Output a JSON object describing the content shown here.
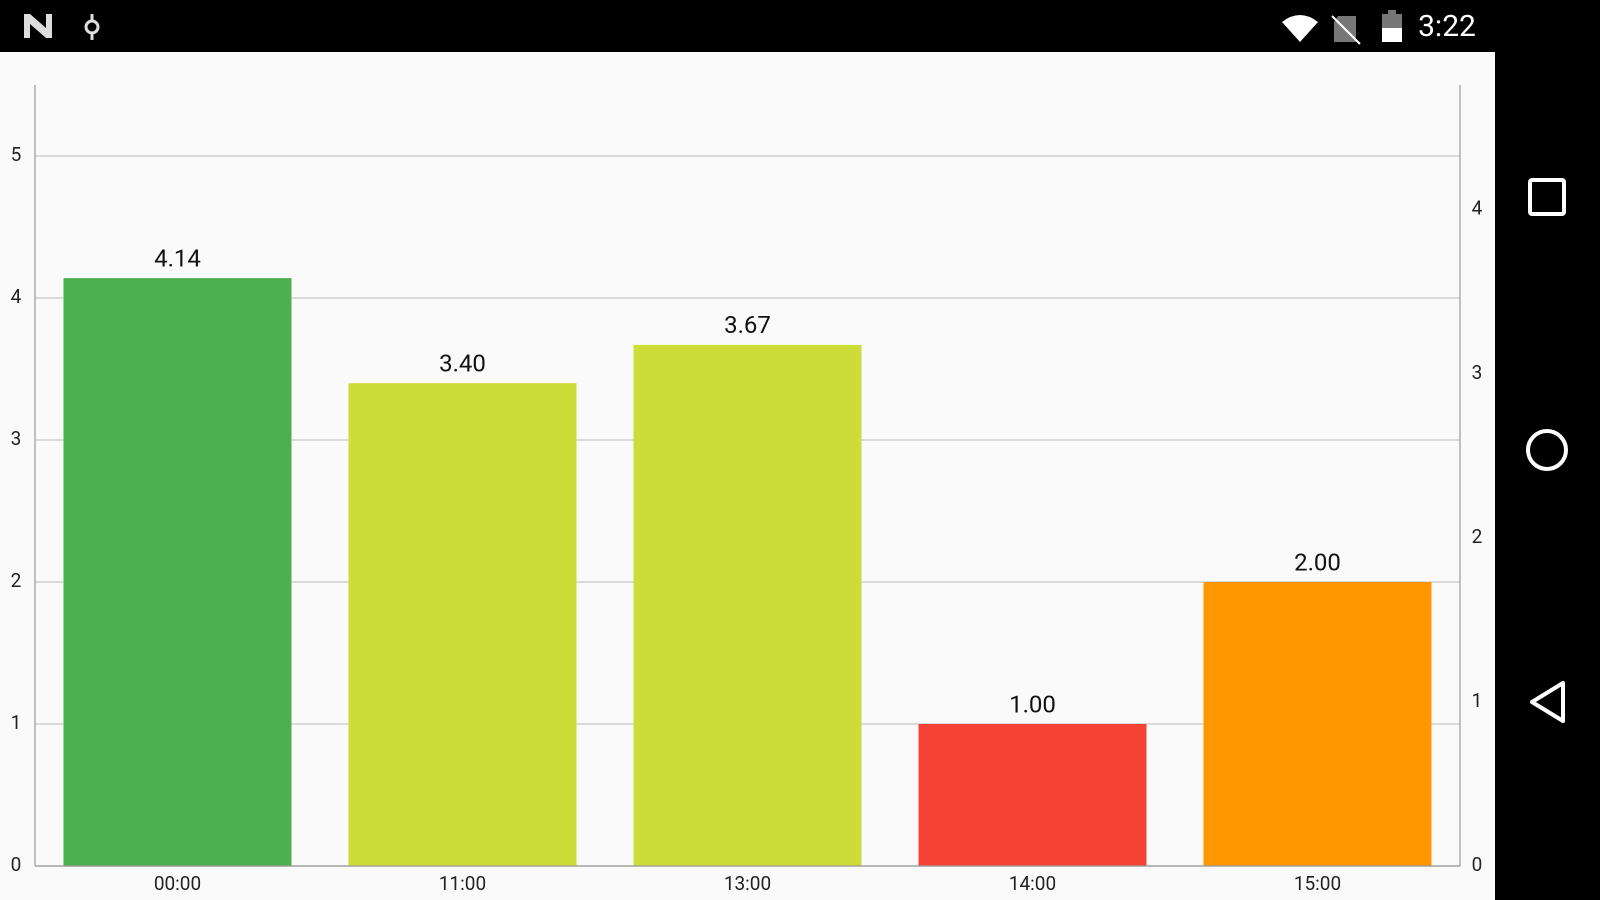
{
  "status_bar": {
    "time": "3:22"
  },
  "chart_data": {
    "type": "bar",
    "categories": [
      "00:00",
      "11:00",
      "13:00",
      "14:00",
      "15:00"
    ],
    "values": [
      4.14,
      3.4,
      3.67,
      1.0,
      2.0
    ],
    "value_labels": [
      "4.14",
      "3.40",
      "3.67",
      "1.00",
      "2.00"
    ],
    "colors": [
      "#4caf50",
      "#cddc39",
      "#cddc39",
      "#f44336",
      "#ff9800"
    ],
    "ylim": [
      0,
      5.5
    ],
    "yticks": [
      0,
      1,
      2,
      3,
      4,
      5
    ],
    "y2lim": [
      0,
      4.76
    ],
    "y2ticks": [
      0,
      1,
      2,
      3,
      4
    ],
    "grid": true
  }
}
